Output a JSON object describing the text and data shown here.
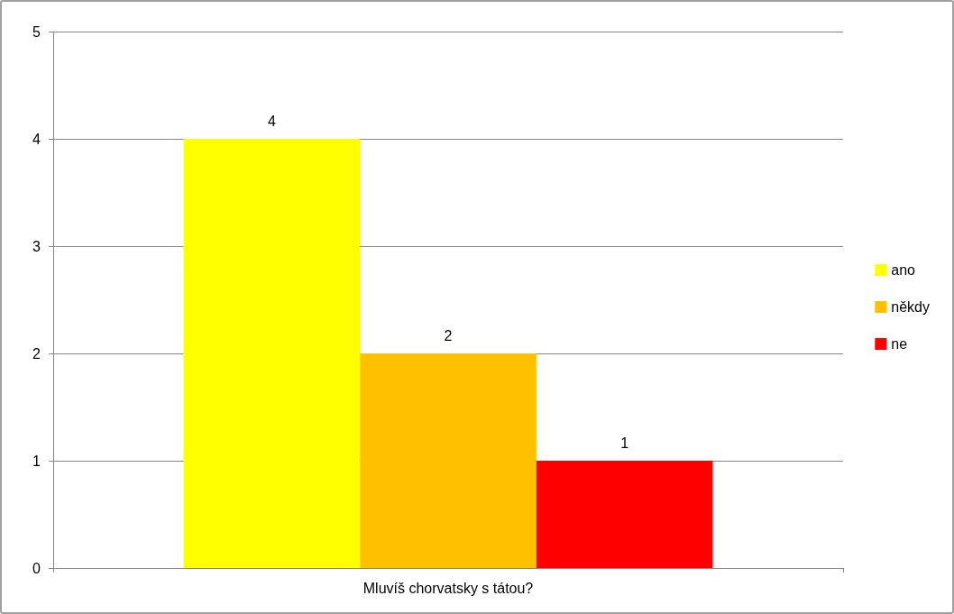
{
  "chart_data": {
    "type": "bar",
    "categories": [
      "Mluvíš chorvatsky s tátou?"
    ],
    "series": [
      {
        "name": "ano",
        "color": "#ffff00",
        "values": [
          4
        ]
      },
      {
        "name": "někdy",
        "color": "#ffc000",
        "values": [
          2
        ]
      },
      {
        "name": "ne",
        "color": "#ff0000",
        "values": [
          1
        ]
      }
    ],
    "ylim": [
      0,
      5
    ],
    "yticks": [
      0,
      1,
      2,
      3,
      4,
      5
    ],
    "grid": "y",
    "legend": "right",
    "data_labels": true
  }
}
